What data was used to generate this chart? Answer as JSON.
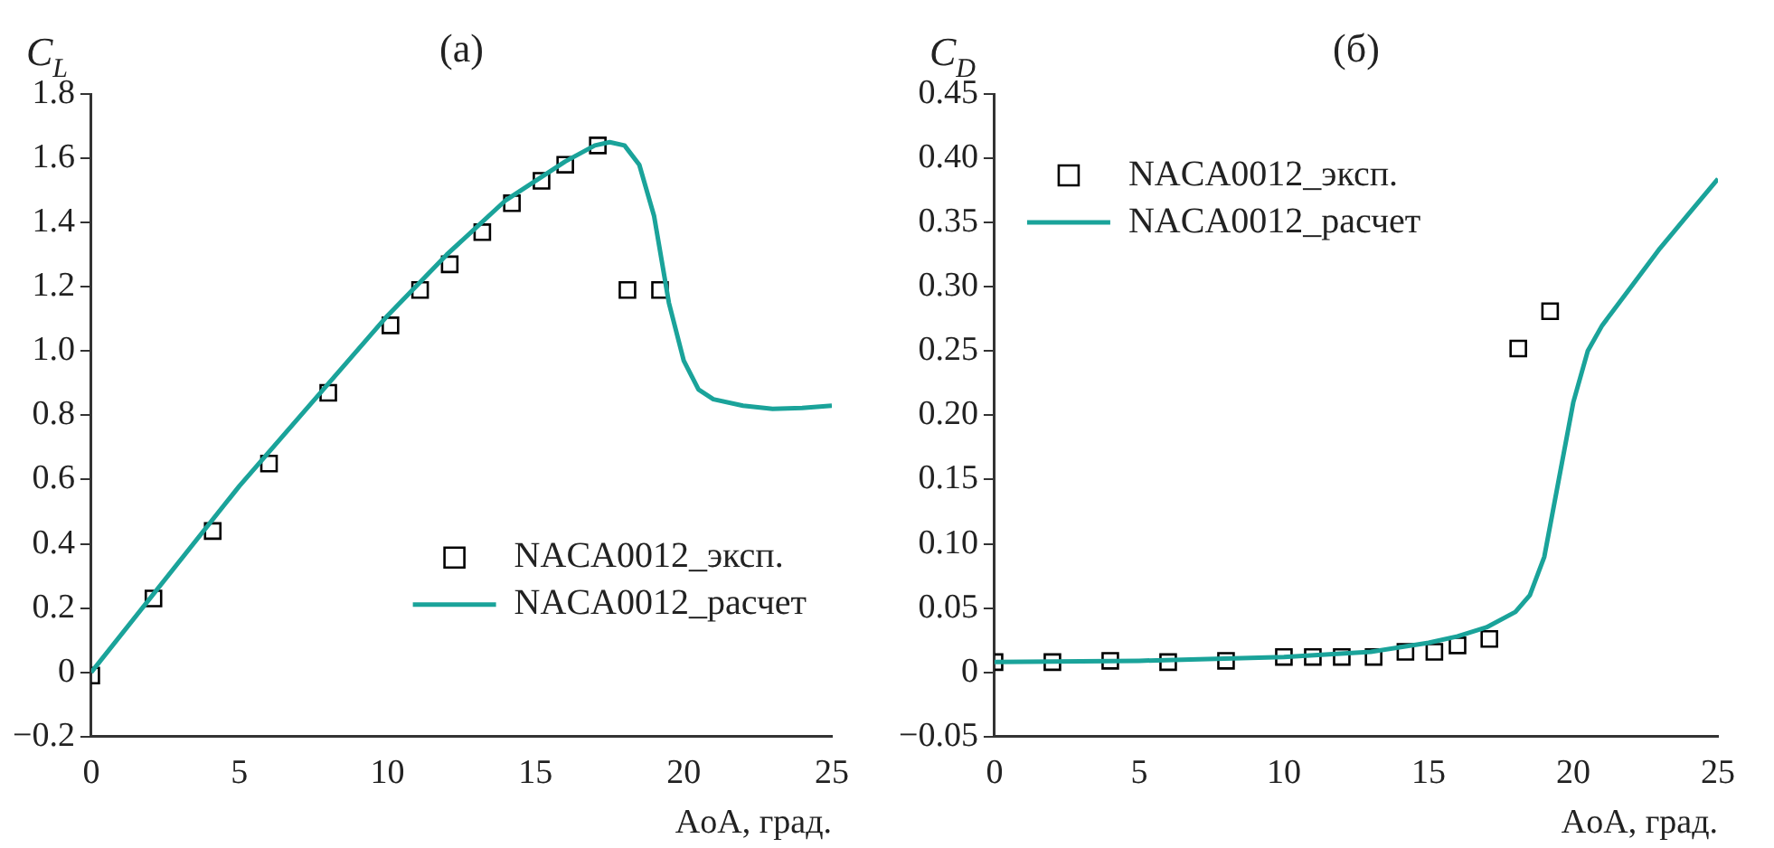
{
  "chart_data": [
    {
      "type": "line",
      "title": "(a)",
      "ylabel": "C$_{L}$",
      "xlabel": "AoA, град.",
      "xlim": [
        0,
        25
      ],
      "xticks": [
        0,
        5,
        10,
        15,
        20,
        25
      ],
      "ylim": [
        -0.2,
        1.8
      ],
      "yticks": [
        {
          "value": -0.2,
          "label": "−0.2"
        },
        0,
        0.2,
        0.4,
        0.6,
        0.8,
        {
          "value": 1,
          "label": "1.0"
        },
        1.2,
        1.4,
        1.6,
        1.8
      ],
      "grid": false,
      "legend": "bottom right",
      "series": [
        {
          "name": "NACA0012_эксп.",
          "type": "scatter",
          "marker": "square",
          "color": "#000000",
          "x": [
            0,
            2.1,
            4.1,
            6,
            8,
            10.1,
            11.1,
            12.1,
            13.2,
            14.2,
            15.2,
            16,
            17.1,
            18.1,
            19.2
          ],
          "values": [
            -0.01,
            0.23,
            0.44,
            0.65,
            0.87,
            1.08,
            1.19,
            1.27,
            1.37,
            1.46,
            1.53,
            1.58,
            1.64,
            1.19,
            1.19
          ]
        },
        {
          "name": "NACA0012_расчет",
          "type": "line",
          "marker": "none",
          "color": "#1aa39a",
          "x": [
            0,
            5,
            10,
            12,
            14,
            16,
            17,
            17.5,
            18,
            18.5,
            19,
            19.5,
            20,
            20.5,
            21,
            22,
            23,
            24,
            25
          ],
          "values": [
            0,
            0.58,
            1.11,
            1.3,
            1.47,
            1.59,
            1.64,
            1.65,
            1.64,
            1.58,
            1.42,
            1.15,
            0.97,
            0.88,
            0.85,
            0.83,
            0.82,
            0.823,
            0.83
          ]
        }
      ]
    },
    {
      "type": "line",
      "title": "(б)",
      "ylabel": "C$_{D}$",
      "xlabel": "AoA, град.",
      "xlim": [
        0,
        25
      ],
      "xticks": [
        0,
        5,
        10,
        15,
        20,
        25
      ],
      "ylim": [
        -0.05,
        0.45
      ],
      "yticks": [
        {
          "value": -0.05,
          "label": "−0.05"
        },
        0,
        0.05,
        {
          "value": 0.1,
          "label": "0.10"
        },
        0.15,
        {
          "value": 0.2,
          "label": "0.20"
        },
        0.25,
        {
          "value": 0.3,
          "label": "0.30"
        },
        0.35,
        {
          "value": 0.4,
          "label": "0.40"
        },
        0.45
      ],
      "grid": false,
      "legend": "top left",
      "series": [
        {
          "name": "NACA0012_эксп.",
          "type": "scatter",
          "marker": "square",
          "color": "#000000",
          "x": [
            0,
            2,
            4,
            6,
            8,
            10,
            11,
            12,
            13.1,
            14.2,
            15.2,
            16,
            17.1,
            18.1,
            19.2
          ],
          "values": [
            0.008,
            0.008,
            0.009,
            0.008,
            0.009,
            0.012,
            0.012,
            0.012,
            0.012,
            0.016,
            0.016,
            0.021,
            0.026,
            0.252,
            0.281
          ]
        },
        {
          "name": "NACA0012_расчет",
          "type": "line",
          "marker": "none",
          "color": "#1aa39a",
          "x": [
            0,
            5,
            10,
            13,
            15,
            16,
            17,
            18,
            18.5,
            19,
            19.5,
            20,
            20.5,
            21,
            22,
            23,
            24,
            25
          ],
          "values": [
            0.008,
            0.009,
            0.012,
            0.016,
            0.023,
            0.028,
            0.035,
            0.047,
            0.06,
            0.09,
            0.15,
            0.21,
            0.25,
            0.27,
            0.3,
            0.33,
            0.357,
            0.384
          ]
        }
      ]
    }
  ]
}
